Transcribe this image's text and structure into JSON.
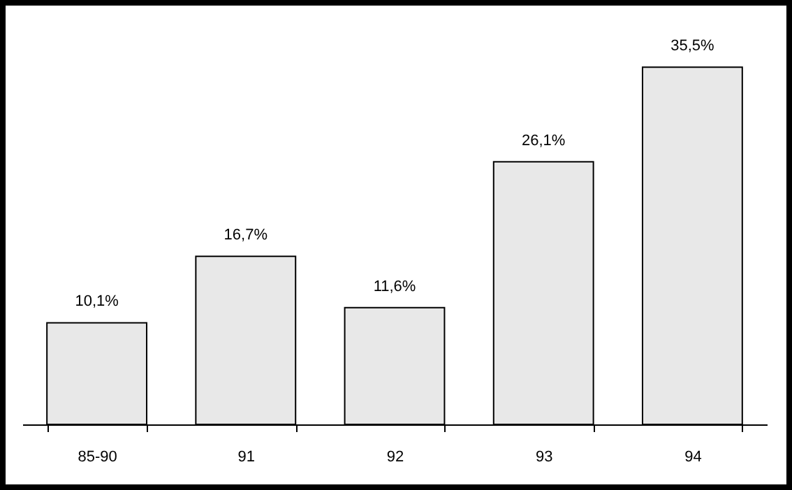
{
  "chart_data": {
    "type": "bar",
    "categories": [
      "85-90",
      "91",
      "92",
      "93",
      "94"
    ],
    "values": [
      10.1,
      16.7,
      11.6,
      26.1,
      35.5
    ],
    "value_labels": [
      "10,1%",
      "16,7%",
      "11,6%",
      "26,1%",
      "35,5%"
    ],
    "color": "#e8e8e8"
  }
}
